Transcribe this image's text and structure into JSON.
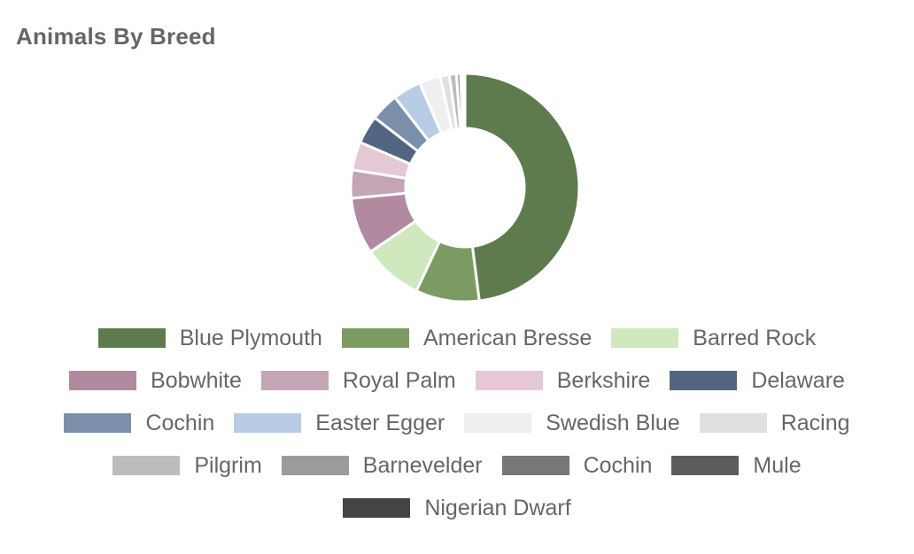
{
  "chart_data": {
    "type": "pie",
    "variant": "donut",
    "title": "Animals By Breed",
    "legend_position": "bottom",
    "series": [
      {
        "name": "Blue Plymouth",
        "value": 48,
        "color": "#5e7b4e"
      },
      {
        "name": "American Bresse",
        "value": 9,
        "color": "#7a9c63"
      },
      {
        "name": "Barred Rock",
        "value": 8.5,
        "color": "#cfe8bd"
      },
      {
        "name": "Bobwhite",
        "value": 8,
        "color": "#b28a9f"
      },
      {
        "name": "Royal Palm",
        "value": 4,
        "color": "#c4a5b5"
      },
      {
        "name": "Berkshire",
        "value": 4,
        "color": "#e4c8d6"
      },
      {
        "name": "Delaware",
        "value": 4,
        "color": "#526582"
      },
      {
        "name": "Cochin",
        "value": 4,
        "color": "#7b8fab"
      },
      {
        "name": "Easter Egger",
        "value": 4,
        "color": "#b8cde5"
      },
      {
        "name": "Swedish Blue",
        "value": 3,
        "color": "#efefef"
      },
      {
        "name": "Racing",
        "value": 1.3,
        "color": "#e0e0e0"
      },
      {
        "name": "Pilgrim",
        "value": 1,
        "color": "#bcbcbc"
      },
      {
        "name": "Barnevelder",
        "value": 0.6,
        "color": "#9b9b9b"
      },
      {
        "name": "Cochin",
        "value": 0.3,
        "color": "#777777"
      },
      {
        "name": "Mule",
        "value": 0.2,
        "color": "#5c5c5c"
      },
      {
        "name": "Nigerian Dwarf",
        "value": 0.1,
        "color": "#444444"
      }
    ]
  }
}
